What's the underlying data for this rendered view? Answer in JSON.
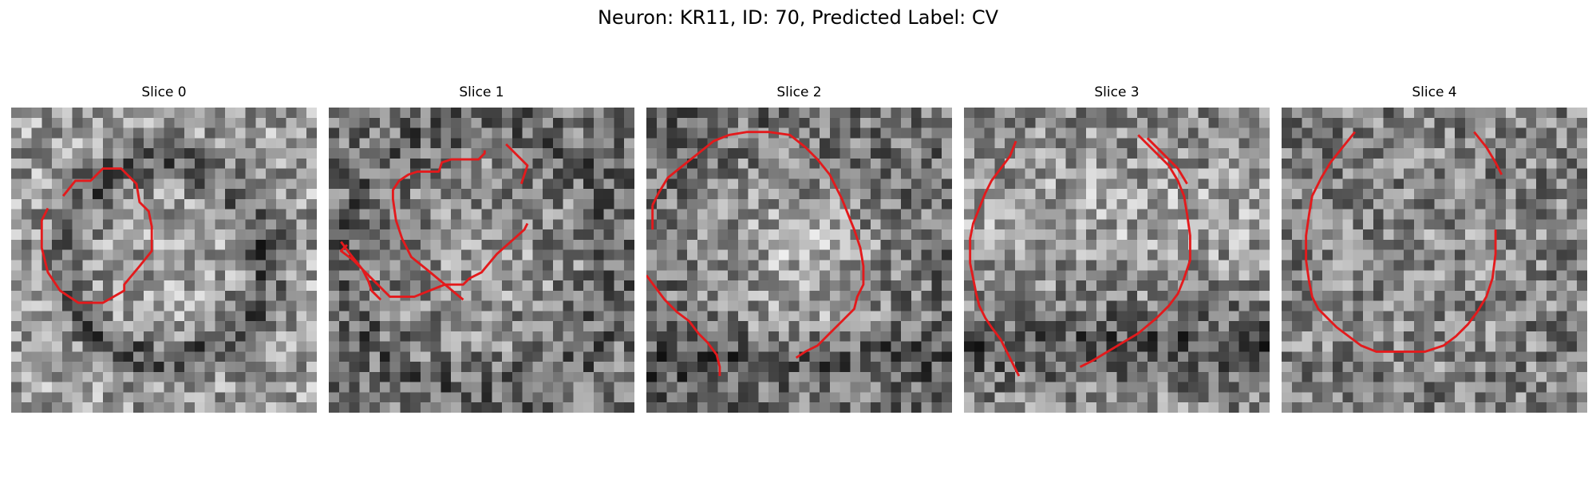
{
  "figure": {
    "title": "Neuron: KR11, ID: 70, Predicted Label: CV"
  },
  "panels": [
    {
      "title": "Slice 0",
      "seed": 11,
      "pattern": "ring-dark",
      "contours": [
        [
          [
            17,
            29
          ],
          [
            21,
            24
          ],
          [
            26,
            24
          ],
          [
            30,
            20
          ],
          [
            36,
            20
          ],
          [
            41,
            25
          ],
          [
            42,
            31
          ],
          [
            45,
            34
          ],
          [
            46,
            39
          ],
          [
            46,
            47
          ],
          [
            42,
            52
          ],
          [
            37,
            58
          ],
          [
            37,
            60
          ],
          [
            30,
            64
          ],
          [
            22,
            64
          ],
          [
            16,
            60
          ],
          [
            12,
            54
          ],
          [
            10,
            46
          ],
          [
            10,
            37
          ],
          [
            12,
            33
          ]
        ]
      ]
    },
    {
      "title": "Slice 1",
      "seed": 23,
      "pattern": "blob-dark-edges",
      "contours": [
        [
          [
            44,
            63
          ],
          [
            38,
            58
          ],
          [
            32,
            53
          ],
          [
            27,
            49
          ],
          [
            24,
            43
          ],
          [
            22,
            37
          ],
          [
            21,
            30
          ],
          [
            21,
            27
          ],
          [
            23,
            24
          ],
          [
            26,
            22
          ],
          [
            29,
            21
          ],
          [
            36,
            21
          ],
          [
            37,
            18
          ],
          [
            40,
            17
          ],
          [
            49,
            17
          ],
          [
            51,
            15
          ],
          [
            51,
            14
          ]
        ],
        [
          [
            63,
            25
          ],
          [
            65,
            19
          ],
          [
            58,
            12
          ]
        ],
        [
          [
            65,
            38
          ],
          [
            64,
            40
          ],
          [
            55,
            48
          ],
          [
            50,
            54
          ],
          [
            46,
            56
          ],
          [
            44,
            58
          ],
          [
            38,
            58
          ],
          [
            28,
            62
          ],
          [
            20,
            62
          ],
          [
            15,
            57
          ],
          [
            11,
            53
          ],
          [
            7,
            48
          ],
          [
            4,
            44
          ]
        ],
        [
          [
            6,
            45
          ],
          [
            4,
            47
          ],
          [
            8,
            50
          ],
          [
            11,
            53
          ],
          [
            13,
            57
          ],
          [
            14,
            60
          ],
          [
            17,
            63
          ]
        ]
      ]
    },
    {
      "title": "Slice 2",
      "seed": 37,
      "pattern": "blob-light-center",
      "contours": [
        [
          [
            0,
            55
          ],
          [
            3,
            59
          ],
          [
            6,
            63
          ],
          [
            10,
            67
          ],
          [
            14,
            70
          ],
          [
            17,
            74
          ],
          [
            20,
            77
          ],
          [
            23,
            81
          ],
          [
            24,
            85
          ],
          [
            24,
            88
          ]
        ],
        [
          [
            2,
            32
          ],
          [
            4,
            28
          ],
          [
            7,
            23
          ],
          [
            12,
            19
          ],
          [
            17,
            15
          ],
          [
            22,
            11
          ],
          [
            27,
            9
          ],
          [
            33,
            8
          ],
          [
            40,
            8
          ],
          [
            47,
            9
          ],
          [
            52,
            13
          ],
          [
            56,
            17
          ],
          [
            60,
            22
          ],
          [
            62,
            26
          ],
          [
            64,
            30
          ],
          [
            66,
            35
          ],
          [
            68,
            40
          ],
          [
            70,
            46
          ],
          [
            71,
            52
          ],
          [
            71,
            58
          ],
          [
            69,
            62
          ],
          [
            68,
            66
          ],
          [
            64,
            70
          ],
          [
            60,
            74
          ],
          [
            56,
            78
          ],
          [
            52,
            80
          ],
          [
            49,
            82
          ]
        ],
        [
          [
            2,
            40
          ],
          [
            2,
            36
          ],
          [
            2,
            32
          ]
        ]
      ]
    },
    {
      "title": "Slice 3",
      "seed": 53,
      "pattern": "bottom-dark",
      "contours": [
        [
          [
            17,
            11
          ],
          [
            15,
            16
          ],
          [
            12,
            20
          ],
          [
            9,
            24
          ],
          [
            7,
            28
          ],
          [
            5,
            33
          ],
          [
            3,
            38
          ],
          [
            2,
            43
          ],
          [
            2,
            51
          ],
          [
            3,
            56
          ],
          [
            4,
            61
          ],
          [
            5,
            65
          ],
          [
            7,
            69
          ],
          [
            9,
            72
          ],
          [
            12,
            76
          ],
          [
            14,
            80
          ],
          [
            16,
            84
          ],
          [
            18,
            88
          ]
        ],
        [
          [
            57,
            9
          ],
          [
            62,
            14
          ],
          [
            67,
            19
          ],
          [
            70,
            24
          ],
          [
            72,
            29
          ],
          [
            73,
            35
          ],
          [
            74,
            42
          ],
          [
            74,
            50
          ],
          [
            72,
            56
          ],
          [
            70,
            61
          ],
          [
            67,
            65
          ],
          [
            63,
            69
          ],
          [
            57,
            74
          ],
          [
            52,
            77
          ],
          [
            47,
            80
          ],
          [
            42,
            83
          ],
          [
            38,
            85
          ]
        ],
        [
          [
            60,
            10
          ],
          [
            65,
            15
          ],
          [
            70,
            20
          ],
          [
            73,
            25
          ]
        ]
      ]
    },
    {
      "title": "Slice 4",
      "seed": 71,
      "pattern": "uniform",
      "contours": [
        [
          [
            24,
            8
          ],
          [
            20,
            13
          ],
          [
            16,
            18
          ],
          [
            13,
            23
          ],
          [
            10,
            29
          ],
          [
            9,
            35
          ],
          [
            8,
            42
          ],
          [
            8,
            50
          ],
          [
            9,
            57
          ],
          [
            10,
            62
          ],
          [
            12,
            66
          ],
          [
            15,
            69
          ],
          [
            18,
            72
          ],
          [
            22,
            75
          ],
          [
            26,
            78
          ],
          [
            31,
            80
          ],
          [
            38,
            80
          ],
          [
            47,
            80
          ],
          [
            53,
            78
          ],
          [
            57,
            75
          ],
          [
            61,
            71
          ],
          [
            64,
            67
          ],
          [
            67,
            62
          ],
          [
            69,
            56
          ],
          [
            70,
            48
          ],
          [
            70,
            40
          ]
        ],
        [
          [
            63,
            8
          ],
          [
            67,
            13
          ],
          [
            70,
            18
          ],
          [
            72,
            22
          ]
        ]
      ]
    }
  ],
  "colors": {
    "contour": "#e31a1c",
    "background": "#ffffff"
  }
}
